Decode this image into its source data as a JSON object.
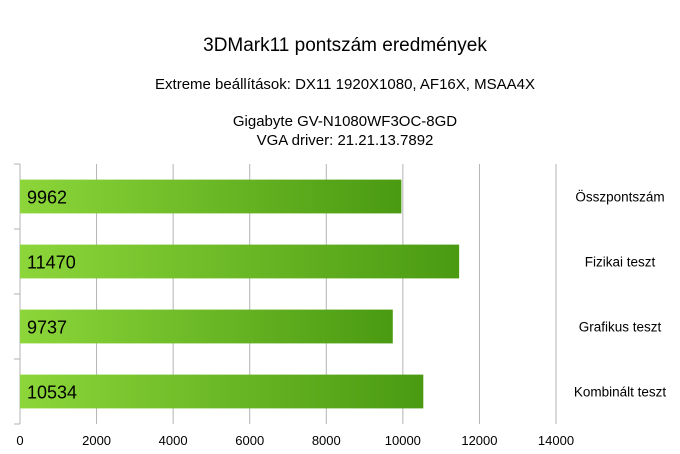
{
  "chart_data": {
    "type": "bar",
    "orientation": "horizontal",
    "title": "3DMark11 pontszám eredmények",
    "subtitle_lines": [
      "Extreme beállítások: DX11 1920X1080, AF16X, MSAA4X",
      "",
      "Gigabyte GV-N1080WF3OC-8GD",
      "VGA driver: 21.21.13.7892"
    ],
    "categories": [
      "Összpontszám",
      "Fizikai teszt",
      "Grafikus teszt",
      "Kombinált teszt"
    ],
    "values": [
      9962,
      11470,
      9737,
      10534
    ],
    "value_labels": [
      "9962",
      "11470",
      "9737",
      "10534"
    ],
    "xlim": [
      0,
      14000
    ],
    "xticks": [
      0,
      2000,
      4000,
      6000,
      8000,
      10000,
      12000,
      14000
    ],
    "xtick_labels": [
      "0",
      "2000",
      "4000",
      "6000",
      "8000",
      "10000",
      "12000",
      "14000"
    ],
    "grid": true,
    "legend": "none",
    "category_labels_position": "right",
    "bar_color_start": "#8cd63a",
    "bar_color_end": "#4a9a12"
  }
}
